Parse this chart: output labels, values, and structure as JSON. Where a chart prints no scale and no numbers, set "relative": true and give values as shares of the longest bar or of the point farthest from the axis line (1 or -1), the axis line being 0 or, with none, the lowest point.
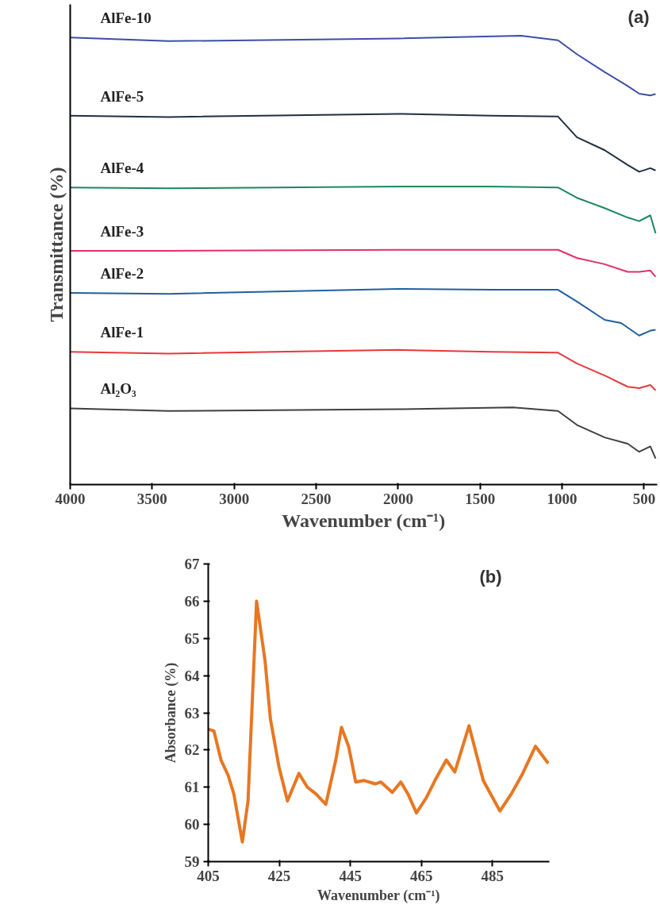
{
  "chart_data": [
    {
      "type": "line",
      "relative": true,
      "xlabel": "Wavenumber (cm⁻¹)",
      "ylabel": "Transmittance (%)",
      "annotations": [
        "(a)"
      ],
      "xlim": [
        4000,
        420
      ],
      "xticks": [
        4000,
        3500,
        3000,
        2500,
        2000,
        1500,
        1000,
        500
      ],
      "grid": false,
      "marker": "none",
      "line_style": "solid",
      "tick_labels": "x",
      "series": [
        {
          "name": "AlFe-10",
          "color": "#3a4fa8",
          "x": [
            4000,
            3400,
            2000,
            1250,
            1025,
            910,
            740,
            600,
            530,
            462,
            430
          ],
          "values": [
            0.996,
            0.988,
            0.994,
            1.0,
            0.99,
            0.959,
            0.919,
            0.888,
            0.871,
            0.867,
            0.87
          ]
        },
        {
          "name": "AlFe-5",
          "color": "#1f3040",
          "x": [
            4000,
            3400,
            2000,
            1430,
            1025,
            910,
            740,
            600,
            530,
            462,
            430
          ],
          "values": [
            0.822,
            0.819,
            0.826,
            0.822,
            0.82,
            0.774,
            0.745,
            0.712,
            0.697,
            0.705,
            0.7
          ]
        },
        {
          "name": "AlFe-4",
          "color": "#1a8a5a",
          "x": [
            4000,
            3400,
            2000,
            1430,
            1025,
            910,
            740,
            600,
            530,
            462,
            430
          ],
          "values": [
            0.662,
            0.66,
            0.664,
            0.664,
            0.662,
            0.639,
            0.616,
            0.595,
            0.587,
            0.6,
            0.56
          ]
        },
        {
          "name": "AlFe-3",
          "color": "#e0306a",
          "x": [
            4000,
            3400,
            2000,
            1430,
            1025,
            910,
            740,
            600,
            530,
            462,
            430
          ],
          "values": [
            0.521,
            0.521,
            0.523,
            0.523,
            0.523,
            0.505,
            0.491,
            0.474,
            0.474,
            0.477,
            0.463
          ]
        },
        {
          "name": "AlFe-2",
          "color": "#1f5fa0",
          "x": [
            4000,
            3400,
            2000,
            1430,
            1025,
            910,
            740,
            640,
            530,
            462,
            430
          ],
          "values": [
            0.427,
            0.425,
            0.436,
            0.434,
            0.434,
            0.408,
            0.367,
            0.36,
            0.332,
            0.343,
            0.345
          ]
        },
        {
          "name": "AlFe-1",
          "color": "#e8383c",
          "x": [
            4000,
            3400,
            2000,
            1430,
            1025,
            910,
            740,
            600,
            530,
            462,
            430
          ],
          "values": [
            0.296,
            0.292,
            0.3,
            0.296,
            0.294,
            0.27,
            0.243,
            0.218,
            0.215,
            0.222,
            0.21
          ]
        },
        {
          "name": "Al₂O₃",
          "color": "#404040",
          "x": [
            4000,
            3400,
            2000,
            1300,
            1025,
            910,
            740,
            600,
            530,
            462,
            430
          ],
          "values": [
            0.17,
            0.164,
            0.168,
            0.172,
            0.164,
            0.133,
            0.105,
            0.091,
            0.073,
            0.085,
            0.058
          ]
        }
      ]
    },
    {
      "type": "line",
      "xlabel": "Wavenumber (cm⁻¹)",
      "ylabel": "Absorbance (%)",
      "annotations": [
        "(b)"
      ],
      "xlim": [
        405,
        501
      ],
      "ylim": [
        59,
        67
      ],
      "xticks": [
        405,
        425,
        445,
        465,
        485
      ],
      "yticks": [
        59,
        60,
        61,
        62,
        63,
        64,
        65,
        66,
        67
      ],
      "grid": false,
      "marker": "none",
      "line_style": "solid",
      "series": [
        {
          "color": "#e87722",
          "x": [
            405,
            406.6,
            408.6,
            410.6,
            412.2,
            414.6,
            416.2,
            418.6,
            421.0,
            422.5,
            424.9,
            427.3,
            430.5,
            432.9,
            435.3,
            438.1,
            440.9,
            442.5,
            444.5,
            446.5,
            448.9,
            452.0,
            453.6,
            456.8,
            459.2,
            461.2,
            463.6,
            466.4,
            468.8,
            472.0,
            474.4,
            478.4,
            482.4,
            487.1,
            490.3,
            493.5,
            497.1,
            500.7
          ],
          "values": [
            62.56,
            62.51,
            61.73,
            61.32,
            60.82,
            59.53,
            60.63,
            66.0,
            64.39,
            62.83,
            61.55,
            60.63,
            61.37,
            61.0,
            60.82,
            60.54,
            61.73,
            62.61,
            62.1,
            61.14,
            61.18,
            61.09,
            61.14,
            60.86,
            61.14,
            60.82,
            60.31,
            60.72,
            61.18,
            61.73,
            61.41,
            62.65,
            61.18,
            60.36,
            60.82,
            61.37,
            62.1,
            61.64
          ]
        }
      ]
    }
  ]
}
